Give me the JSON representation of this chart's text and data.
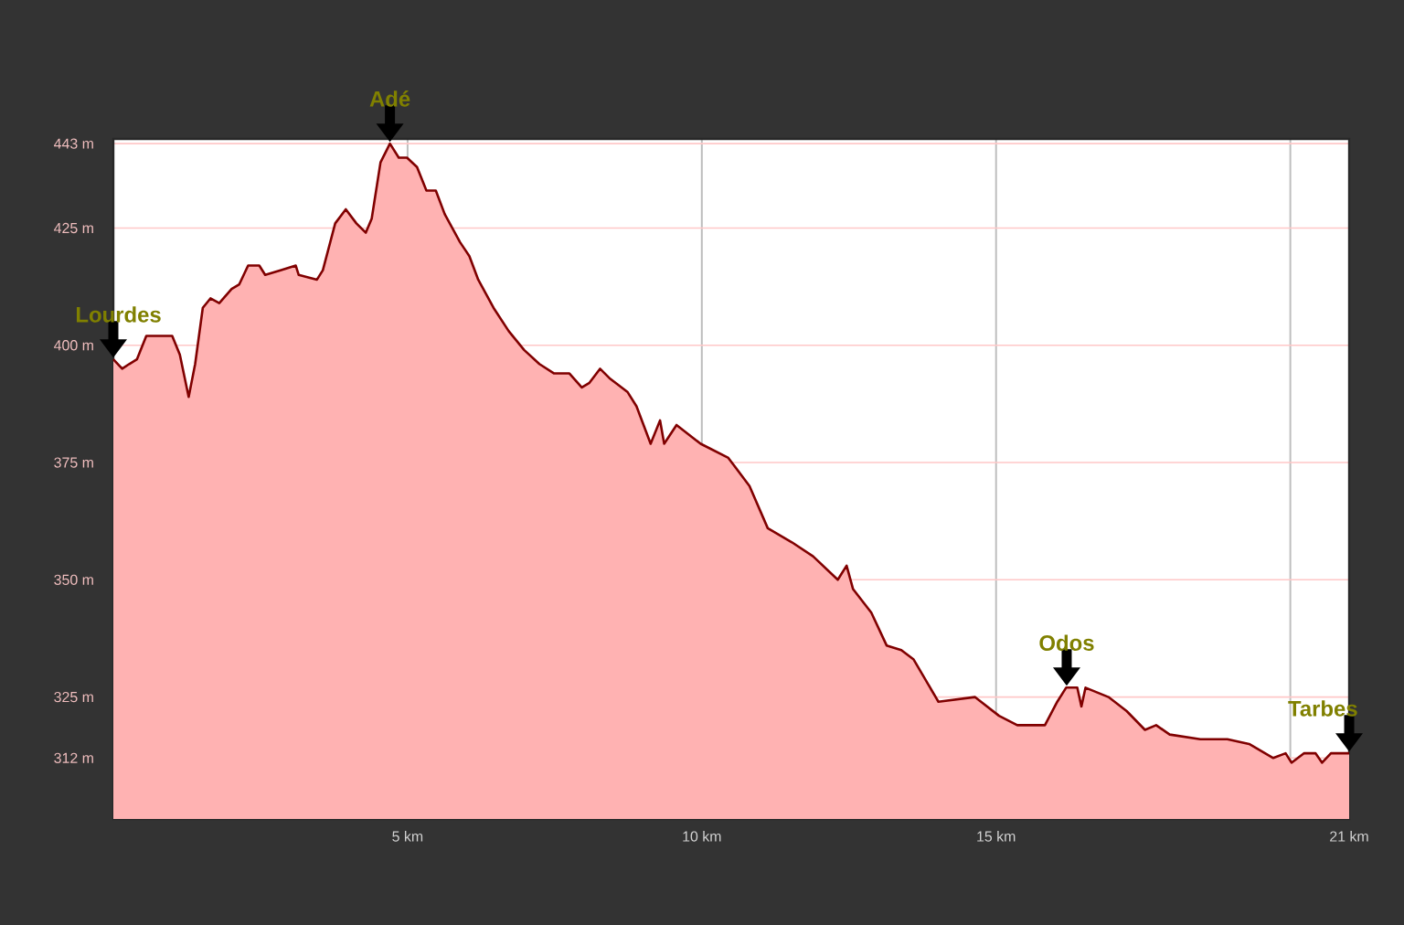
{
  "chart_data": {
    "type": "area",
    "series": [
      {
        "color": "#800000",
        "x": [
          0,
          0.15,
          0.27,
          0.4,
          0.56,
          0.77,
          1.0,
          1.13,
          1.28,
          1.39,
          1.52,
          1.65,
          1.8,
          2.01,
          2.14,
          2.29,
          2.48,
          2.58,
          2.84,
          3.1,
          3.15,
          3.46,
          3.56,
          3.77,
          3.95,
          4.13,
          4.29,
          4.39,
          4.54,
          4.7,
          4.85,
          4.99,
          5.16,
          5.32,
          5.48,
          5.63,
          5.89,
          6.05,
          6.2,
          6.46,
          6.72,
          6.98,
          7.24,
          7.49,
          7.75,
          7.96,
          8.09,
          8.27,
          8.43,
          8.74,
          8.89,
          9.13,
          9.29,
          9.36,
          9.57,
          9.98,
          10.45,
          10.81,
          11.12,
          11.53,
          11.89,
          12.31,
          12.46,
          12.57,
          12.88,
          13.14,
          13.39,
          13.6,
          14.02,
          14.64,
          15.05,
          15.36,
          15.83,
          16.04,
          16.19,
          16.38,
          16.45,
          16.52,
          16.91,
          17.22,
          17.53,
          17.72,
          17.95,
          18.47,
          18.93,
          19.3,
          19.71,
          19.92,
          20.02,
          20.23,
          20.43,
          20.54,
          20.69,
          21.0
        ],
        "values": [
          397,
          395,
          396,
          397,
          402,
          402,
          402,
          398,
          389,
          396,
          408,
          410,
          409,
          412,
          413,
          417,
          417,
          415,
          416,
          417,
          415,
          414,
          416,
          426,
          429,
          426,
          424,
          427,
          439,
          443,
          440,
          440,
          438,
          433,
          433,
          428,
          422,
          419,
          414,
          408,
          403,
          399,
          396,
          394,
          394,
          391,
          392,
          395,
          393,
          390,
          387,
          379,
          384,
          379,
          383,
          379,
          376,
          370,
          361,
          358,
          355,
          350,
          353,
          348,
          343,
          336,
          335,
          333,
          324,
          325,
          321,
          319,
          319,
          324,
          327,
          327,
          323,
          327,
          325,
          322,
          318,
          319,
          317,
          316,
          316,
          315,
          312,
          313,
          311,
          313,
          313,
          311,
          313,
          313
        ]
      }
    ],
    "xlim": [
      0,
      21
    ],
    "xticks": [
      {
        "value": 5,
        "label": "5 km"
      },
      {
        "value": 10,
        "label": "10 km"
      },
      {
        "value": 15,
        "label": "15 km"
      },
      {
        "value": 20,
        "label": null
      },
      {
        "value": 21,
        "label": "21 km"
      }
    ],
    "ylim": [
      299,
      444
    ],
    "yticks": [
      {
        "value": 312,
        "label": "312 m"
      },
      {
        "value": 325,
        "label": "325 m"
      },
      {
        "value": 350,
        "label": "350 m"
      },
      {
        "value": 375,
        "label": "375 m"
      },
      {
        "value": 400,
        "label": "400 m"
      },
      {
        "value": 425,
        "label": "425 m"
      },
      {
        "value": 443,
        "label": "443 m"
      }
    ],
    "grid": true,
    "annotations": [
      {
        "text": "Lourdes",
        "x": 0,
        "y": 397
      },
      {
        "text": "Adé",
        "x": 4.7,
        "y": 443
      },
      {
        "text": "Odos",
        "x": 16.2,
        "y": 327
      },
      {
        "text": "Tarbes",
        "x": 21,
        "y": 313
      }
    ]
  }
}
